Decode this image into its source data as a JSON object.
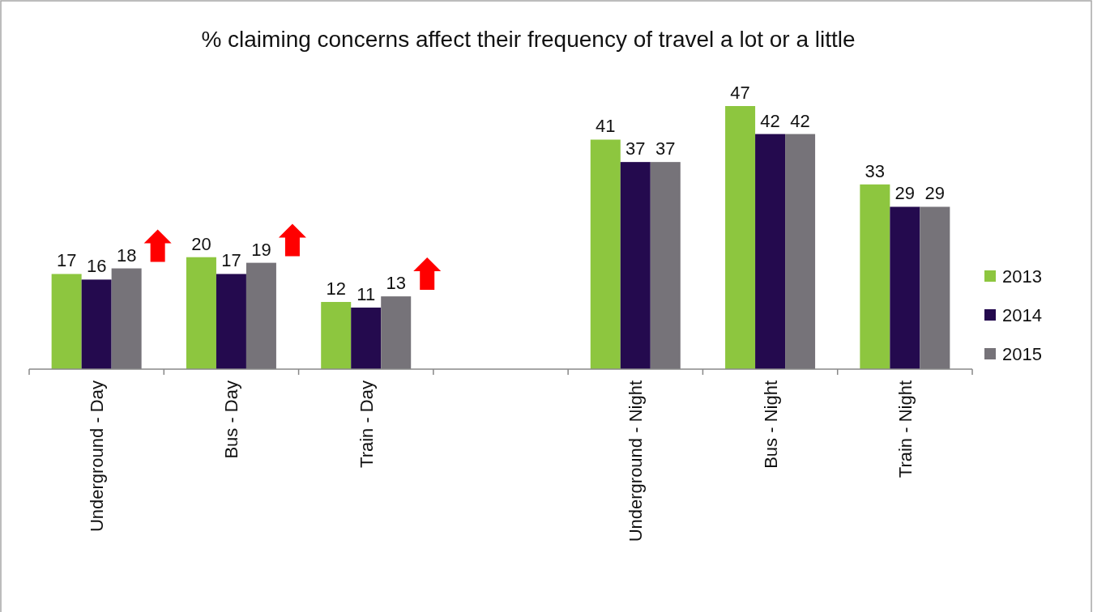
{
  "chart_data": {
    "type": "bar",
    "title": "% claiming concerns affect their frequency of travel a lot or a little",
    "categories": [
      "Underground - Day",
      "Bus - Day",
      "Train - Day",
      null,
      "Underground - Night",
      "Bus - Night",
      "Train - Night"
    ],
    "series": [
      {
        "name": "2013",
        "color": "#8dc63f",
        "values": [
          17,
          20,
          12,
          null,
          41,
          47,
          33
        ]
      },
      {
        "name": "2014",
        "color": "#240a4e",
        "values": [
          16,
          17,
          11,
          null,
          37,
          42,
          29
        ]
      },
      {
        "name": "2015",
        "color": "#767379",
        "values": [
          18,
          19,
          13,
          null,
          37,
          42,
          29
        ]
      }
    ],
    "data_labels": true,
    "legend": "right"
  }
}
